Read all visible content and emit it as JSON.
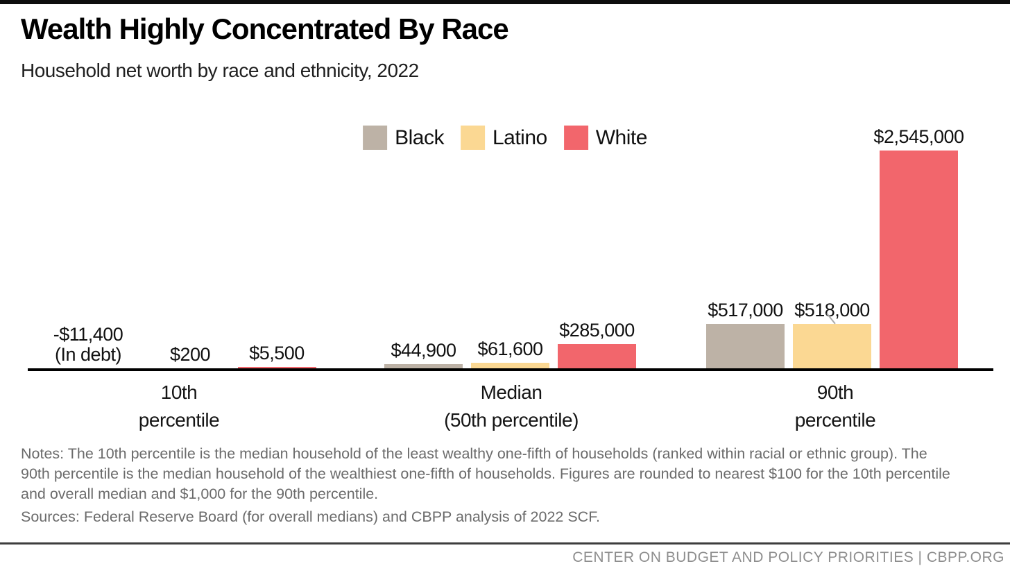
{
  "header": {
    "title": "Wealth Highly Concentrated By Race",
    "subtitle": "Household net worth by race and ethnicity, 2022"
  },
  "footnotes": {
    "notes": "Notes: The 10th percentile is the median household of the least wealthy one-fifth of households (ranked within racial or ethnic group).  The 90th percentile is the median household of the wealthiest one-fifth of households. Figures are rounded to nearest $100 for the 10th percentile and overall median and $1,000 for the 90th percentile.",
    "sources": "Sources: Federal Reserve Board (for overall medians) and CBPP analysis of 2022 SCF."
  },
  "footer": {
    "credit": "CENTER ON BUDGET AND POLICY PRIORITIES | CBPP.ORG"
  },
  "chart_data": {
    "type": "bar",
    "title": "Wealth Highly Concentrated By Race",
    "subtitle": "Household net worth by race and ethnicity, 2022",
    "legend_position": "top-center",
    "grid": false,
    "axis_color": "#000000",
    "ylim": [
      0,
      2545000
    ],
    "categories": [
      "10th percentile",
      "Median (50th percentile)",
      "90th percentile"
    ],
    "category_labels": [
      "10th\npercentile",
      "Median\n(50th percentile)",
      "90th\npercentile"
    ],
    "series": [
      {
        "name": "Black",
        "color": "#BDB2A6",
        "values": [
          -11400,
          44900,
          517000
        ],
        "labels": [
          "-$11,400\n(In debt)",
          "$44,900",
          "$517,000"
        ]
      },
      {
        "name": "Latino",
        "color": "#FBD893",
        "values": [
          200,
          61600,
          518000
        ],
        "labels": [
          "$200",
          "$61,600",
          "$518,000"
        ]
      },
      {
        "name": "White",
        "color": "#F2666C",
        "values": [
          5500,
          285000,
          2545000
        ],
        "labels": [
          "$5,500",
          "$285,000",
          "$2,545,000"
        ]
      }
    ],
    "annotations": [
      {
        "type": "leader-line",
        "series": "Latino",
        "category": "90th percentile"
      }
    ]
  }
}
